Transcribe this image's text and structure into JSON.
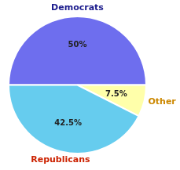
{
  "chart_data": {
    "type": "pie",
    "values": [
      50.0,
      7.5,
      42.5
    ],
    "value_labels": [
      "50%",
      "7.5%",
      "42.5%"
    ],
    "colors": [
      "#6e6eee",
      "#ffffaa",
      "#66ccee"
    ],
    "data_labels": true,
    "annotations": [
      {
        "text": "Democrats",
        "color": "#1a1a8c"
      },
      {
        "text": "Other",
        "color": "#cc8800"
      },
      {
        "text": "Republicans",
        "color": "#cc2200"
      }
    ]
  }
}
